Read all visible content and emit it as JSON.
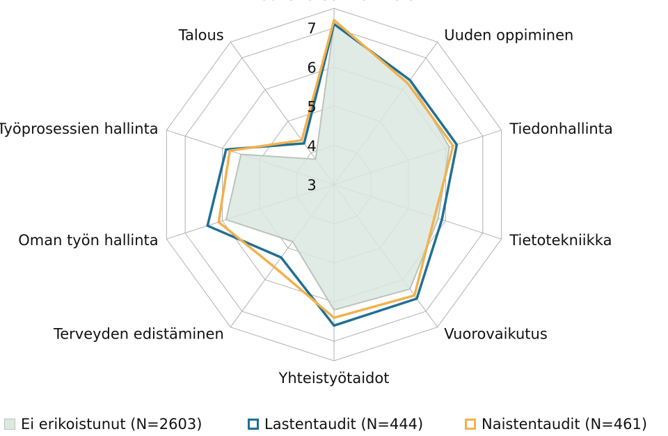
{
  "chart_data": {
    "type": "radar",
    "axes": [
      "Lääketieteellinen tieto",
      "Uuden oppiminen",
      "Tiedonhallinta",
      "Tietotekniikka",
      "Vuorovaikutus",
      "Yhteistyötaidot",
      "Terveyden edistäminen",
      "Oman työn hallinta",
      "Työprosessien hallinta",
      "Talous"
    ],
    "ticks": [
      "3",
      "4",
      "5",
      "6",
      "7"
    ],
    "range": [
      3,
      7.5
    ],
    "grid": true,
    "legend_position": "bottom",
    "series": [
      {
        "name": "Ei erikoistunut (N=2603)",
        "style": "filled",
        "color": "#dce8e0",
        "stroke": "#b8c4bc",
        "values": [
          7.1,
          6.3,
          6.1,
          5.8,
          6.3,
          6.2,
          4.8,
          5.9,
          5.5,
          3.8
        ]
      },
      {
        "name": "Lastentaudit (N=444)",
        "style": "outline",
        "color": "#1f6f94",
        "values": [
          7.1,
          6.3,
          6.3,
          5.9,
          6.6,
          6.6,
          5.3,
          6.4,
          5.9,
          4.3
        ]
      },
      {
        "name": "Naistentaudit (N=461)",
        "style": "outline",
        "color": "#f2b14c",
        "values": [
          7.2,
          6.2,
          6.2,
          5.7,
          6.5,
          6.4,
          5.6,
          6.1,
          5.8,
          4.4
        ]
      }
    ]
  }
}
